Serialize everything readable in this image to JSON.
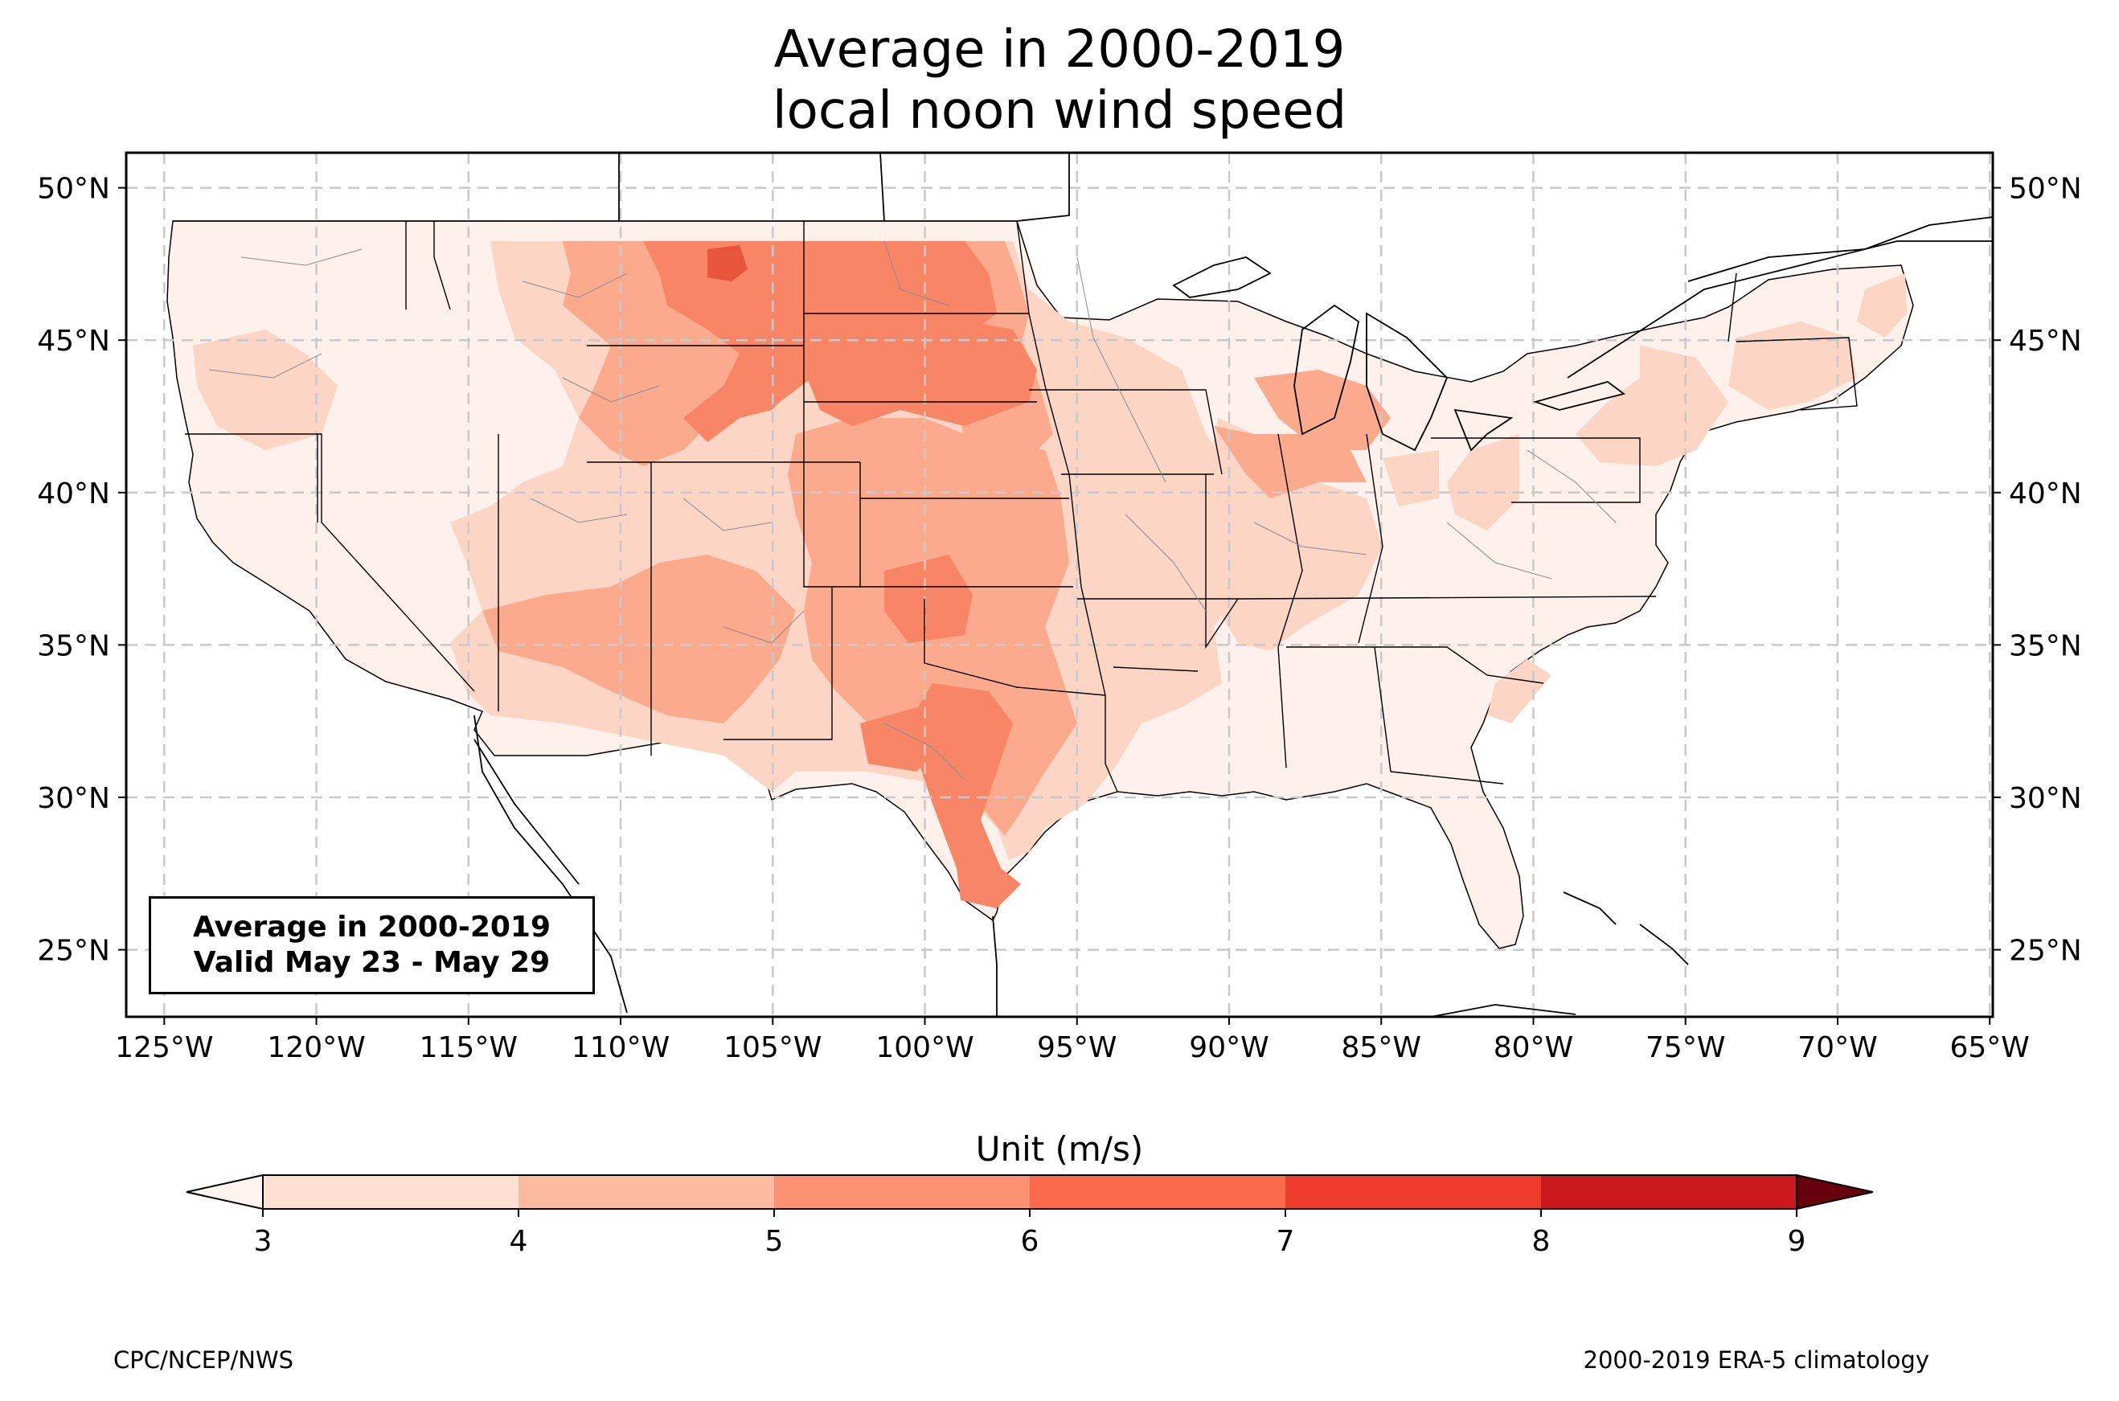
{
  "title": {
    "line1": "Average in 2000-2019",
    "line2": "local noon wind speed"
  },
  "map": {
    "lat_labels": [
      "25°N",
      "30°N",
      "35°N",
      "40°N",
      "45°N",
      "50°N"
    ],
    "lon_labels": [
      "125°W",
      "120°W",
      "115°W",
      "110°W",
      "105°W",
      "100°W",
      "95°W",
      "90°W",
      "85°W",
      "80°W",
      "75°W",
      "70°W",
      "65°W"
    ]
  },
  "inset": {
    "line1": "Average in 2000-2019",
    "line2": "Valid May 23 - May 29"
  },
  "colorbar": {
    "title": "Unit (m/s)",
    "ticks": [
      "3",
      "4",
      "5",
      "6",
      "7",
      "8",
      "9"
    ],
    "colors": [
      "#fee0d2",
      "#fcbba1",
      "#fc9272",
      "#fb6a4a",
      "#ef3b2c",
      "#cb181d",
      "#a50f15"
    ],
    "under_color": "#fff5f0",
    "over_color": "#67000d"
  },
  "footer": {
    "left": "CPC/NCEP/NWS",
    "right": "2000-2019 ERA-5 climatology"
  }
}
